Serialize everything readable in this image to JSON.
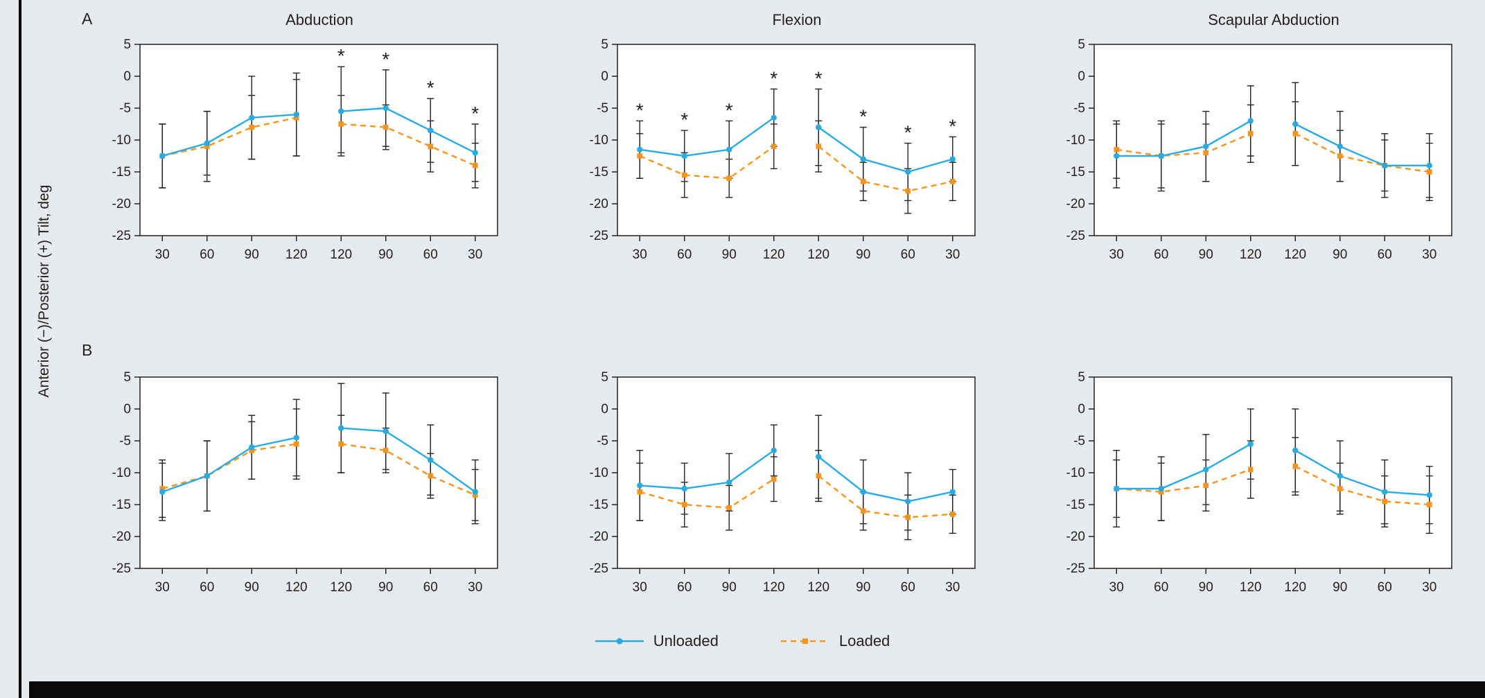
{
  "figure": {
    "ylabel": "Anterior (−)/Posterior (+) Tilt, deg",
    "row_labels": [
      "A",
      "B"
    ],
    "col_titles": [
      "Abduction",
      "Flexion",
      "Scapular Abduction"
    ],
    "legend": [
      {
        "label": "Unloaded",
        "color": "#29ABE2",
        "style": "solid",
        "marker": "circle"
      },
      {
        "label": "Loaded",
        "color": "#F7941D",
        "style": "dashed",
        "marker": "square"
      }
    ],
    "significance_symbol": "*"
  },
  "chart_data": [
    {
      "type": "line",
      "panel": "A",
      "title": "Abduction",
      "categories": [
        "30",
        "60",
        "90",
        "120",
        "120",
        "90",
        "60",
        "30"
      ],
      "xlabel": "",
      "ylabel": "Anterior (−)/Posterior (+) Tilt, deg",
      "ylim": [
        -25,
        5
      ],
      "yticks": [
        5,
        0,
        -5,
        -10,
        -15,
        -20,
        -25
      ],
      "series": [
        {
          "name": "Unloaded",
          "values": [
            -12.5,
            -10.5,
            -6.5,
            -6.0,
            -5.5,
            -5.0,
            -8.5,
            -12.0
          ],
          "errors": [
            5,
            5,
            6.5,
            6.5,
            7,
            6,
            5,
            4.5
          ]
        },
        {
          "name": "Loaded",
          "values": [
            -12.5,
            -11.0,
            -8.0,
            -6.5,
            -7.5,
            -8.0,
            -11.0,
            -14.0
          ],
          "errors": [
            5,
            5.5,
            5,
            6,
            4.5,
            3.5,
            4,
            3.5
          ]
        }
      ],
      "asterisks": [
        4,
        5,
        6,
        7
      ]
    },
    {
      "type": "line",
      "panel": "A",
      "title": "Flexion",
      "categories": [
        "30",
        "60",
        "90",
        "120",
        "120",
        "90",
        "60",
        "30"
      ],
      "ylim": [
        -25,
        5
      ],
      "yticks": [
        5,
        0,
        -5,
        -10,
        -15,
        -20,
        -25
      ],
      "series": [
        {
          "name": "Unloaded",
          "values": [
            -11.5,
            -12.5,
            -11.5,
            -6.5,
            -8.0,
            -13.0,
            -15.0,
            -13.0
          ],
          "errors": [
            4.5,
            4,
            4.5,
            4.5,
            6,
            5,
            4.5,
            3.5
          ]
        },
        {
          "name": "Loaded",
          "values": [
            -12.5,
            -15.5,
            -16.0,
            -11.0,
            -11.0,
            -16.5,
            -18.0,
            -16.5
          ],
          "errors": [
            3.5,
            3.5,
            3,
            3.5,
            4,
            3,
            3.5,
            3
          ]
        }
      ],
      "asterisks": [
        0,
        1,
        2,
        3,
        4,
        5,
        6,
        7
      ]
    },
    {
      "type": "line",
      "panel": "A",
      "title": "Scapular Abduction",
      "categories": [
        "30",
        "60",
        "90",
        "120",
        "120",
        "90",
        "60",
        "30"
      ],
      "ylim": [
        -25,
        5
      ],
      "yticks": [
        5,
        0,
        -5,
        -10,
        -15,
        -20,
        -25
      ],
      "series": [
        {
          "name": "Unloaded",
          "values": [
            -12.5,
            -12.5,
            -11.0,
            -7.0,
            -7.5,
            -11.0,
            -14.0,
            -14.0
          ],
          "errors": [
            5,
            5.5,
            5.5,
            5.5,
            6.5,
            5.5,
            5,
            5
          ]
        },
        {
          "name": "Loaded",
          "values": [
            -11.5,
            -12.5,
            -12.0,
            -9.0,
            -9.0,
            -12.5,
            -14.0,
            -15.0
          ],
          "errors": [
            4.5,
            5,
            4.5,
            4.5,
            5,
            4,
            4,
            4.5
          ]
        }
      ],
      "asterisks": []
    },
    {
      "type": "line",
      "panel": "B",
      "title": "Abduction",
      "categories": [
        "30",
        "60",
        "90",
        "120",
        "120",
        "90",
        "60",
        "30"
      ],
      "ylim": [
        -25,
        5
      ],
      "yticks": [
        5,
        0,
        -5,
        -10,
        -15,
        -20,
        -25
      ],
      "series": [
        {
          "name": "Unloaded",
          "values": [
            -13.0,
            -10.5,
            -6.0,
            -4.5,
            -3.0,
            -3.5,
            -8.0,
            -13.0
          ],
          "errors": [
            4.5,
            5.5,
            5,
            6,
            7,
            6,
            5.5,
            5
          ]
        },
        {
          "name": "Loaded",
          "values": [
            -12.5,
            -10.5,
            -6.5,
            -5.5,
            -5.5,
            -6.5,
            -10.5,
            -13.5
          ],
          "errors": [
            4.5,
            5.5,
            4.5,
            5.5,
            4.5,
            3.5,
            3.5,
            4
          ]
        }
      ],
      "asterisks": []
    },
    {
      "type": "line",
      "panel": "B",
      "title": "Flexion",
      "categories": [
        "30",
        "60",
        "90",
        "120",
        "120",
        "90",
        "60",
        "30"
      ],
      "ylim": [
        -25,
        5
      ],
      "yticks": [
        5,
        0,
        -5,
        -10,
        -15,
        -20,
        -25
      ],
      "series": [
        {
          "name": "Unloaded",
          "values": [
            -12.0,
            -12.5,
            -11.5,
            -6.5,
            -7.5,
            -13.0,
            -14.5,
            -13.0
          ],
          "errors": [
            5.5,
            4,
            4.5,
            4,
            6.5,
            5,
            4.5,
            3.5
          ]
        },
        {
          "name": "Loaded",
          "values": [
            -13.0,
            -15.0,
            -15.5,
            -11.0,
            -10.5,
            -16.0,
            -17.0,
            -16.5
          ],
          "errors": [
            4.5,
            3.5,
            3.5,
            3.5,
            4,
            3,
            3.5,
            3
          ]
        }
      ],
      "asterisks": []
    },
    {
      "type": "line",
      "panel": "B",
      "title": "Scapular Abduction",
      "categories": [
        "30",
        "60",
        "90",
        "120",
        "120",
        "90",
        "60",
        "30"
      ],
      "ylim": [
        -25,
        5
      ],
      "yticks": [
        5,
        0,
        -5,
        -10,
        -15,
        -20,
        -25
      ],
      "series": [
        {
          "name": "Unloaded",
          "values": [
            -12.5,
            -12.5,
            -9.5,
            -5.5,
            -6.5,
            -10.5,
            -13.0,
            -13.5
          ],
          "errors": [
            6,
            5,
            5.5,
            5.5,
            6.5,
            5.5,
            5,
            4.5
          ]
        },
        {
          "name": "Loaded",
          "values": [
            -12.5,
            -13.0,
            -12.0,
            -9.5,
            -9.0,
            -12.5,
            -14.5,
            -15.0
          ],
          "errors": [
            4.5,
            4.5,
            4,
            4.5,
            4.5,
            4,
            4,
            4.5
          ]
        }
      ],
      "asterisks": []
    }
  ]
}
